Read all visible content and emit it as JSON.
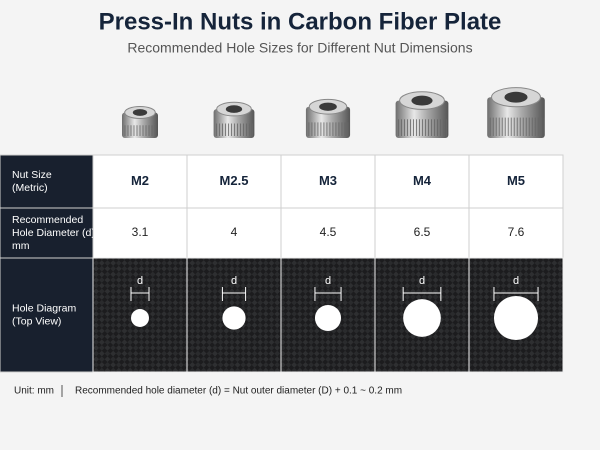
{
  "header": {
    "title": "Press-In Nuts in Carbon Fiber Plate",
    "subtitle": "Recommended Hole Sizes for Different Nut Dimensions"
  },
  "table": {
    "columns": [
      "M2",
      "M2.5",
      "M3",
      "M4",
      "M5"
    ],
    "rows": [
      {
        "label": [
          "Nut Size",
          "(Metric)"
        ]
      },
      {
        "label": [
          "Recommended",
          "Hole Diameter (d)",
          "mm"
        ],
        "values": [
          3.1,
          4,
          4.5,
          6.5,
          7.6
        ]
      },
      {
        "label": [
          "Hole Diagram",
          "(Top View)"
        ],
        "marker": "d"
      }
    ]
  },
  "footer": {
    "unit": "Unit:  mm",
    "note": "Recommended hole diameter (d) = Nut outer diameter (D) + 0.1 ~ 0.2 mm"
  }
}
